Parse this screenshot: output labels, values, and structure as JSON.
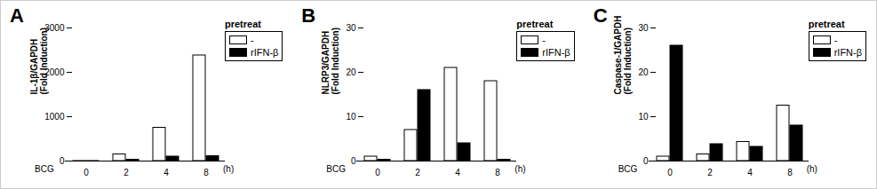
{
  "chart_data": [
    {
      "type": "bar",
      "title": "A",
      "ylabel": [
        "IL-1β/GAPDH",
        "(Fold Induction)"
      ],
      "xlabel": "BCG",
      "xunit": "(h)",
      "categories": [
        0,
        2,
        4,
        8
      ],
      "series": [
        {
          "name": "-",
          "color": "#ffffff",
          "values": [
            1,
            150,
            750,
            2380
          ]
        },
        {
          "name": "rIFN-β",
          "color": "#000000",
          "values": [
            1,
            30,
            100,
            110
          ]
        }
      ],
      "ylim": [
        0,
        3000
      ],
      "yticks": [
        0,
        1000,
        2000,
        3000
      ],
      "legend": "right",
      "legend_title": "pretreat"
    },
    {
      "type": "bar",
      "title": "B",
      "ylabel": [
        "NLRP3/GAPDH",
        "(Fold Induction)"
      ],
      "xlabel": "BCG",
      "xunit": "(h)",
      "categories": [
        0,
        2,
        4,
        8
      ],
      "series": [
        {
          "name": "-",
          "color": "#ffffff",
          "values": [
            1,
            7,
            21,
            18
          ]
        },
        {
          "name": "rIFN-β",
          "color": "#000000",
          "values": [
            0.3,
            16,
            4,
            0.3
          ]
        }
      ],
      "ylim": [
        0,
        30
      ],
      "yticks": [
        0,
        10,
        20,
        30
      ],
      "legend": "right",
      "legend_title": "pretreat"
    },
    {
      "type": "bar",
      "title": "C",
      "ylabel": [
        "Caspase-1/GAPDH",
        "(Fold Induction)"
      ],
      "xlabel": "BCG",
      "xunit": "(h)",
      "categories": [
        0,
        2,
        4,
        8
      ],
      "series": [
        {
          "name": "-",
          "color": "#ffffff",
          "values": [
            1,
            1.5,
            4.3,
            12.5
          ]
        },
        {
          "name": "rIFN-β",
          "color": "#000000",
          "values": [
            26,
            3.8,
            3.2,
            8
          ]
        }
      ],
      "ylim": [
        0,
        30
      ],
      "yticks": [
        0,
        10,
        20,
        30
      ],
      "legend": "right",
      "legend_title": "pretreat"
    }
  ]
}
